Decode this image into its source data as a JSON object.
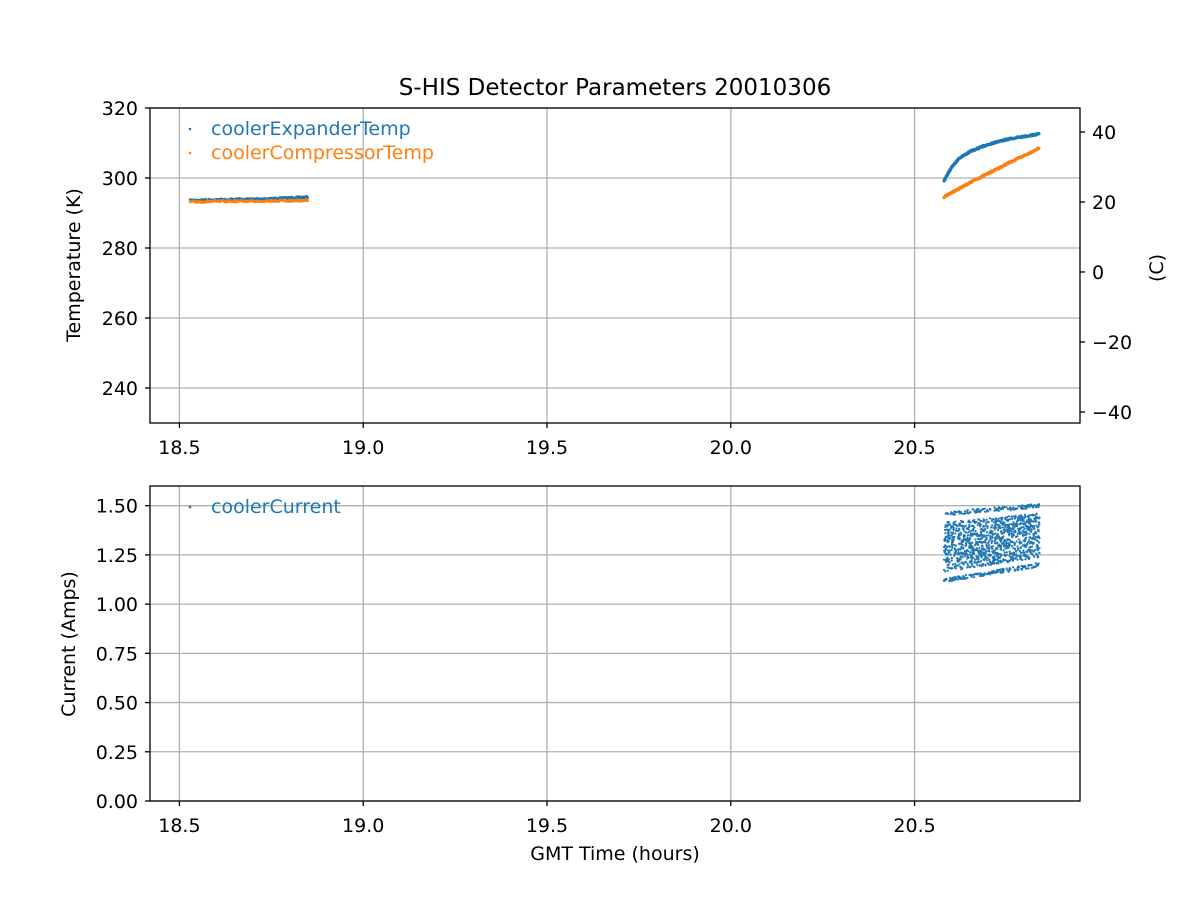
{
  "chart_data": [
    {
      "type": "scatter",
      "title": "S-HIS Detector Parameters 20010306",
      "xlabel": "",
      "ylabel": "Temperature (K)",
      "ylabel_right": "(C)",
      "xlim": [
        18.42,
        20.95
      ],
      "ylim": [
        230,
        320
      ],
      "ylim_right": [
        -43.15,
        46.85
      ],
      "x_ticks": [
        18.5,
        19.0,
        19.5,
        20.0,
        20.5
      ],
      "x_tick_labels": [
        "18.5",
        "19.0",
        "19.5",
        "20.0",
        "20.5"
      ],
      "y_ticks": [
        240,
        260,
        280,
        300,
        320
      ],
      "y_tick_labels": [
        "240",
        "260",
        "280",
        "300",
        "320"
      ],
      "y_ticks_right": [
        -40,
        -20,
        0,
        20,
        40
      ],
      "y_tick_labels_right": [
        "−40",
        "−20",
        "0",
        "20",
        "40"
      ],
      "grid": true,
      "legend_position": "top-left",
      "series": [
        {
          "name": "coolerExpanderTemp",
          "color": "#1f77b4",
          "segments": [
            {
              "x": [
                18.53,
                18.6,
                18.7,
                18.8,
                18.85
              ],
              "y": [
                293.6,
                293.8,
                294.0,
                294.3,
                294.5
              ]
            },
            {
              "x": [
                20.58,
                20.6,
                20.62,
                20.65,
                20.68,
                20.7,
                20.73,
                20.76,
                20.8,
                20.84
              ],
              "y": [
                299.2,
                303.0,
                305.5,
                307.5,
                308.8,
                309.6,
                310.5,
                311.2,
                311.9,
                312.6
              ]
            }
          ]
        },
        {
          "name": "coolerCompressorTemp",
          "color": "#ff7f0e",
          "segments": [
            {
              "x": [
                18.53,
                18.6,
                18.7,
                18.8,
                18.85
              ],
              "y": [
                293.2,
                293.3,
                293.4,
                293.5,
                293.6
              ]
            },
            {
              "x": [
                20.58,
                20.6,
                20.63,
                20.66,
                20.7,
                20.73,
                20.76,
                20.8,
                20.84
              ],
              "y": [
                294.5,
                295.8,
                297.5,
                299.2,
                301.3,
                302.9,
                304.5,
                306.5,
                308.6
              ]
            }
          ]
        }
      ]
    },
    {
      "type": "scatter",
      "title": "",
      "xlabel": "GMT Time (hours)",
      "ylabel": "Current (Amps)",
      "xlim": [
        18.42,
        20.95
      ],
      "ylim": [
        0.0,
        1.6
      ],
      "x_ticks": [
        18.5,
        19.0,
        19.5,
        20.0,
        20.5
      ],
      "x_tick_labels": [
        "18.5",
        "19.0",
        "19.5",
        "20.0",
        "20.5"
      ],
      "y_ticks": [
        0.0,
        0.25,
        0.5,
        0.75,
        1.0,
        1.25,
        1.5
      ],
      "y_tick_labels": [
        "0.00",
        "0.25",
        "0.50",
        "0.75",
        "1.00",
        "1.25",
        "1.50"
      ],
      "grid": true,
      "legend_position": "top-left",
      "series": [
        {
          "name": "coolerCurrent",
          "color": "#1f77b4",
          "x_range": [
            20.58,
            20.84
          ],
          "lower_bound": [
            1.11,
            1.19
          ],
          "upper_bound": [
            1.47,
            1.51
          ]
        }
      ]
    }
  ]
}
